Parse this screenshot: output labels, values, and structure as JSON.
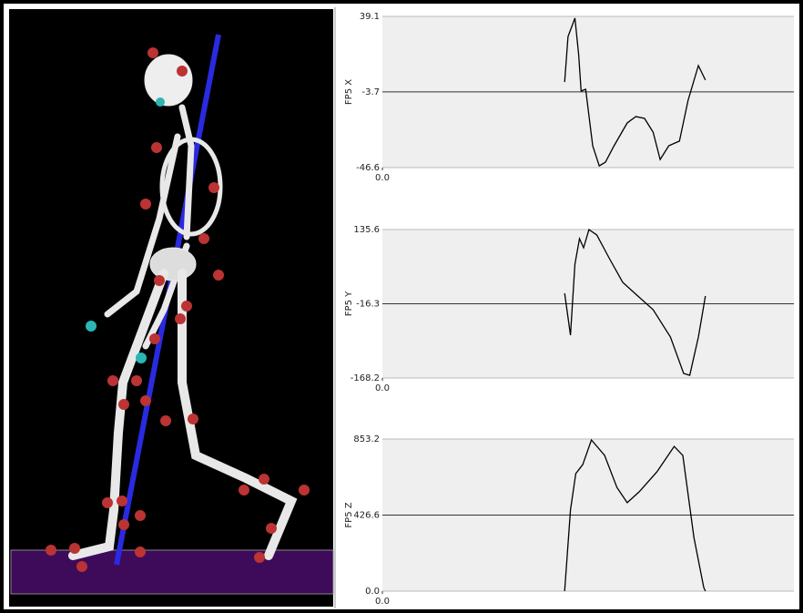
{
  "chart_data": [
    {
      "type": "line",
      "ylabel": "FP5 X",
      "color": "#000000",
      "x": [
        0.443,
        0.451,
        0.468,
        0.477,
        0.483,
        0.494,
        0.511,
        0.527,
        0.542,
        0.563,
        0.595,
        0.616,
        0.637,
        0.658,
        0.675,
        0.696,
        0.722,
        0.743,
        0.768,
        0.785
      ],
      "values": [
        1.9,
        27.7,
        38.1,
        17.4,
        -3.2,
        -2.2,
        -34.2,
        -45.6,
        -43.5,
        -34.2,
        -21.3,
        -17.7,
        -18.7,
        -26.5,
        -42,
        -34.2,
        -31.6,
        -8.4,
        11.2,
        3
      ],
      "xlim": [
        0,
        1
      ],
      "xticks": [
        {
          "value": 0,
          "label": "0.0"
        }
      ],
      "ylim": [
        -46.6,
        39.1
      ],
      "yticks": [
        -46.6,
        -3.7,
        39.1
      ]
    },
    {
      "type": "line",
      "ylabel": "FP5 Y",
      "color": "#000000",
      "x": [
        0.443,
        0.457,
        0.468,
        0.479,
        0.489,
        0.502,
        0.521,
        0.553,
        0.584,
        0.616,
        0.658,
        0.7,
        0.732,
        0.747,
        0.768,
        0.785
      ],
      "values": [
        5.1,
        -80.6,
        64.8,
        117,
        98.3,
        135.6,
        124.4,
        74.1,
        27.5,
        3.3,
        -28.4,
        -84.3,
        -158.9,
        -162.6,
        -84.3,
        -0.4
      ],
      "xlim": [
        0,
        1
      ],
      "xticks": [
        {
          "value": 0,
          "label": "0.0"
        }
      ],
      "ylim": [
        -168.2,
        135.6
      ],
      "yticks": [
        -168.2,
        -16.3,
        135.6
      ]
    },
    {
      "type": "line",
      "ylabel": "FP5 Z",
      "color": "#000000",
      "x": [
        0.443,
        0.457,
        0.47,
        0.487,
        0.508,
        0.54,
        0.57,
        0.595,
        0.624,
        0.667,
        0.709,
        0.73,
        0.757,
        0.781,
        0.785
      ],
      "values": [
        0,
        454.7,
        659,
        710,
        848,
        761,
        582,
        496,
        557,
        669,
        812,
        761,
        301,
        20,
        0
      ],
      "xlim": [
        0,
        1
      ],
      "xticks": [
        {
          "value": 0,
          "label": "0.0"
        }
      ],
      "ylim": [
        0,
        853.2
      ],
      "yticks": [
        {
          "value": 0,
          "label": "0.0"
        },
        426.6,
        853.2
      ]
    }
  ]
}
